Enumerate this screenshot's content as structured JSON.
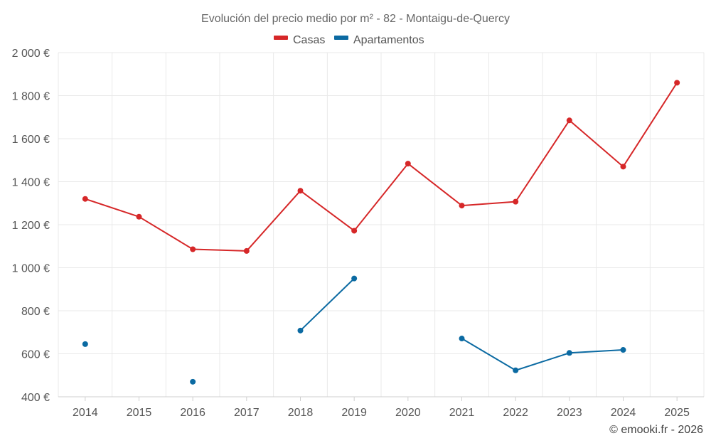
{
  "chart_data": {
    "type": "line",
    "title": "Evolución del precio medio por m² - 82 - Montaigu-de-Quercy",
    "xlabel": "",
    "ylabel": "",
    "categories": [
      "2014",
      "2015",
      "2016",
      "2017",
      "2018",
      "2019",
      "2020",
      "2021",
      "2022",
      "2023",
      "2024",
      "2025"
    ],
    "ylim": [
      400,
      2000
    ],
    "yticks": [
      400,
      600,
      800,
      1000,
      1200,
      1400,
      1600,
      1800,
      2000
    ],
    "ytick_labels": [
      "400 €",
      "600 €",
      "800 €",
      "1 000 €",
      "1 200 €",
      "1 400 €",
      "1 600 €",
      "1 800 €",
      "2 000 €"
    ],
    "grid": true,
    "legend_position": "top-center",
    "series": [
      {
        "name": "Casas",
        "color": "#d62728",
        "values": [
          1320,
          1237,
          1086,
          1078,
          1358,
          1172,
          1484,
          1289,
          1307,
          1685,
          1470,
          1860
        ]
      },
      {
        "name": "Apartamentos",
        "color": "#0b6aa2",
        "values": [
          645,
          null,
          470,
          null,
          708,
          950,
          null,
          671,
          523,
          604,
          618,
          null
        ]
      }
    ],
    "credit": "© emooki.fr - 2026"
  }
}
